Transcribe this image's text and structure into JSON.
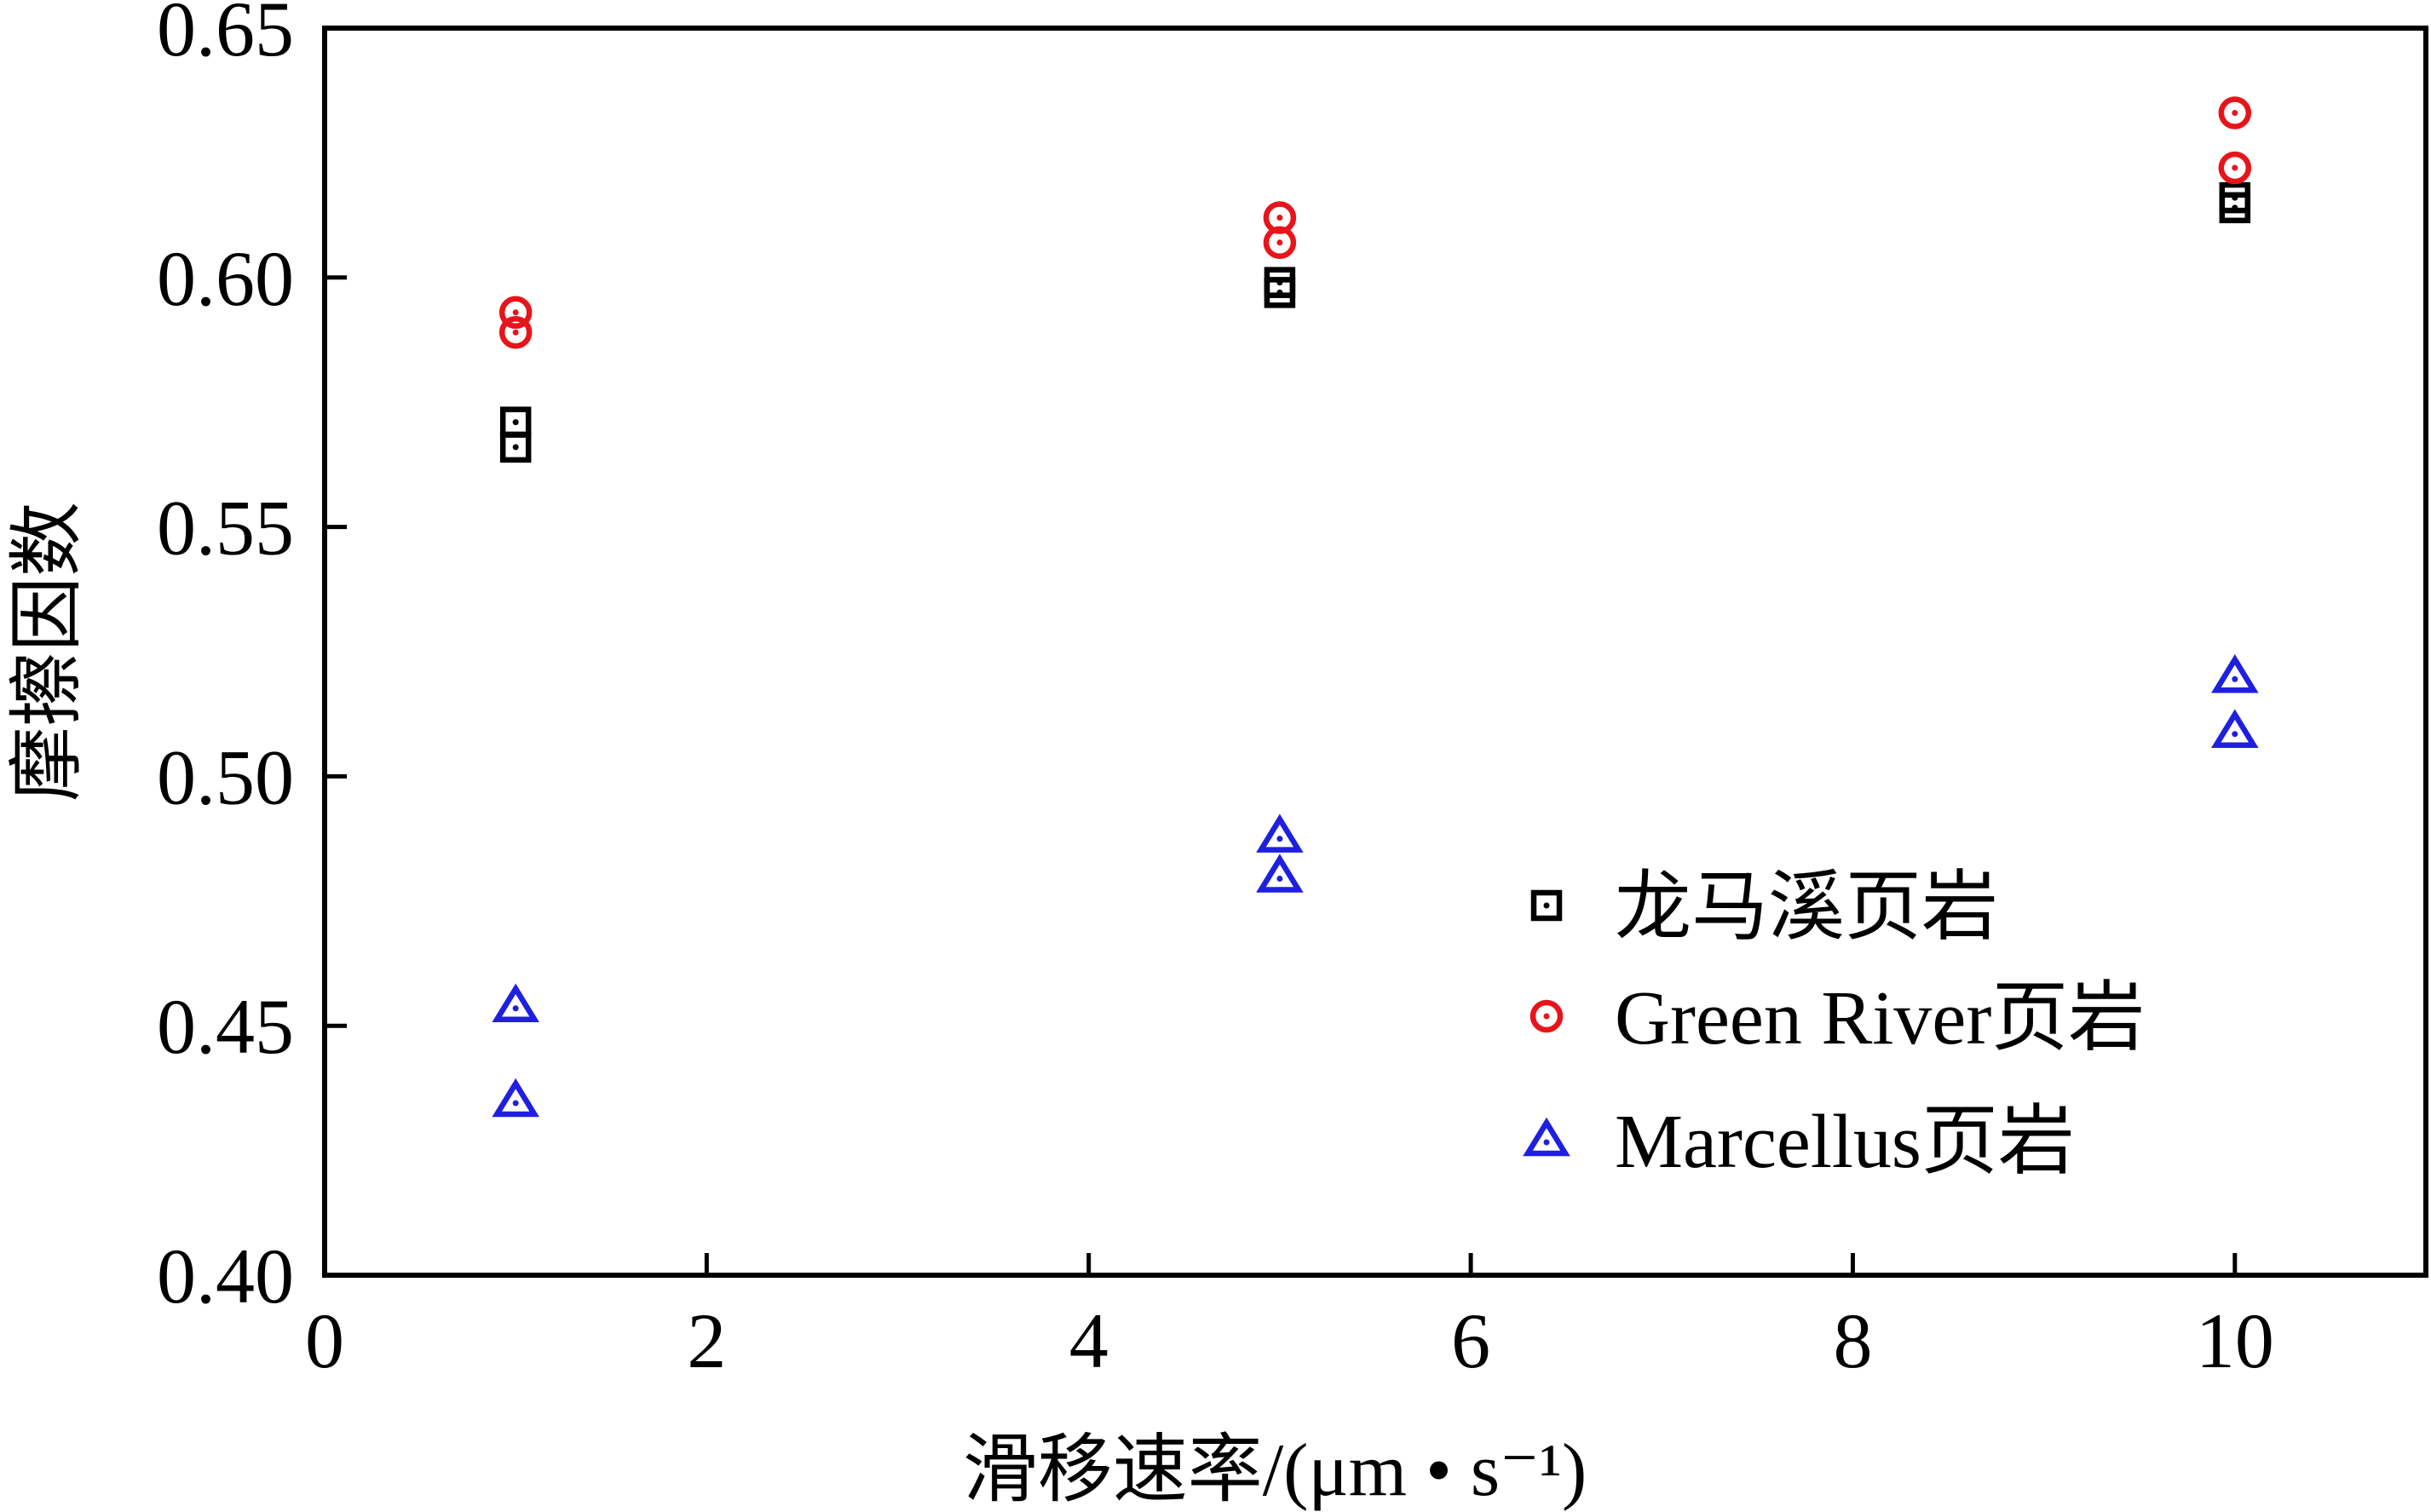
{
  "chart_data": {
    "type": "scatter",
    "title": "",
    "xlabel": "滑移速率/(μm • s⁻¹)",
    "ylabel": "摩擦因数",
    "xlim": [
      0,
      11
    ],
    "ylim": [
      0.4,
      0.65
    ],
    "x_ticks": [
      0,
      2,
      4,
      6,
      8,
      10
    ],
    "x_tick_labels": [
      "0",
      "2",
      "4",
      "6",
      "8",
      "10"
    ],
    "y_ticks": [
      0.4,
      0.45,
      0.5,
      0.55,
      0.6,
      0.65
    ],
    "y_tick_labels": [
      "0.40",
      "0.45",
      "0.50",
      "0.55",
      "0.60",
      "0.65"
    ],
    "grid": false,
    "legend_position": "bottom-right",
    "series": [
      {
        "name": "龙马溪页岩",
        "marker": "square-dot",
        "color": "#000000",
        "points": [
          {
            "x": 1,
            "y": 0.571
          },
          {
            "x": 1,
            "y": 0.566
          },
          {
            "x": 5,
            "y": 0.599
          },
          {
            "x": 5,
            "y": 0.597
          },
          {
            "x": 10,
            "y": 0.616
          },
          {
            "x": 10,
            "y": 0.614
          }
        ]
      },
      {
        "name": "Green River页岩",
        "marker": "circle-dot",
        "color": "#e8141b",
        "points": [
          {
            "x": 1,
            "y": 0.593
          },
          {
            "x": 1,
            "y": 0.589
          },
          {
            "x": 5,
            "y": 0.612
          },
          {
            "x": 5,
            "y": 0.607
          },
          {
            "x": 10,
            "y": 0.633
          },
          {
            "x": 10,
            "y": 0.622
          }
        ]
      },
      {
        "name": "Marcellus页岩",
        "marker": "triangle-dot",
        "color": "#1f1fe0",
        "points": [
          {
            "x": 1,
            "y": 0.454
          },
          {
            "x": 1,
            "y": 0.435
          },
          {
            "x": 5,
            "y": 0.488
          },
          {
            "x": 5,
            "y": 0.48
          },
          {
            "x": 10,
            "y": 0.52
          },
          {
            "x": 10,
            "y": 0.509
          }
        ]
      }
    ]
  }
}
